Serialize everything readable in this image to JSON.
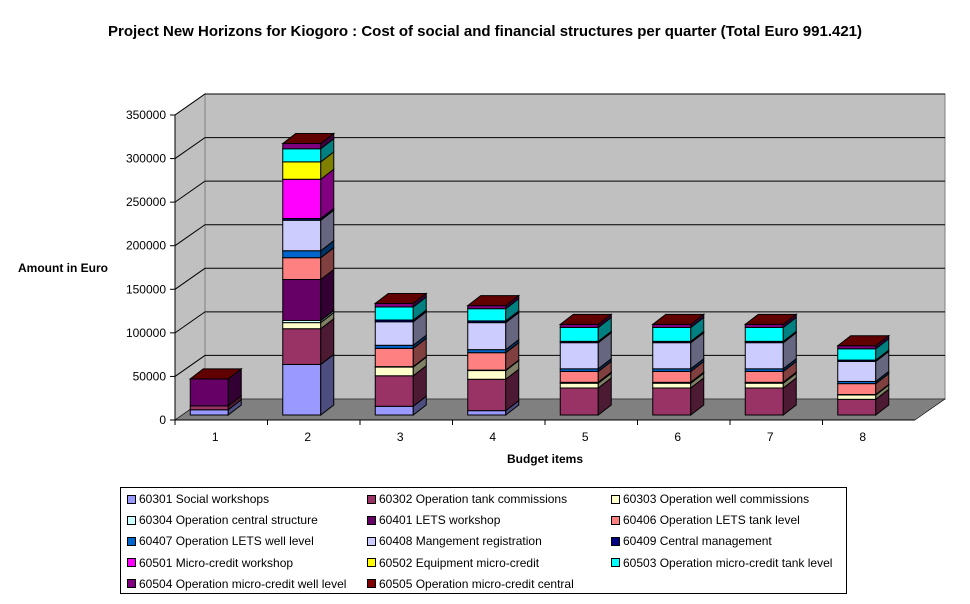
{
  "chart_data": {
    "type": "bar",
    "stacked": true,
    "three_d": true,
    "title": "Project New Horizons for Kiogoro : Cost of social and financial structures per quarter (Total Euro 991.421)",
    "xlabel": "Budget items",
    "ylabel": "Amount in Euro",
    "ylim": [
      0,
      350000
    ],
    "yticks": [
      "0",
      "50000",
      "100000",
      "150000",
      "200000",
      "250000",
      "300000",
      "350000"
    ],
    "grid": true,
    "legend_position": "bottom",
    "categories": [
      "1",
      "2",
      "3",
      "4",
      "5",
      "6",
      "7",
      "8"
    ],
    "series": [
      {
        "name": "60301 Social workshops",
        "color": "#9999FF",
        "values": [
          6000,
          58000,
          10000,
          5000,
          0,
          0,
          0,
          0
        ]
      },
      {
        "name": "60302 Operation tank commissions",
        "color": "#993366",
        "values": [
          4500,
          41000,
          35000,
          36000,
          31000,
          31000,
          31000,
          18000
        ]
      },
      {
        "name": "60303 Operation well commissions",
        "color": "#FFFFCC",
        "values": [
          0,
          7000,
          10000,
          10000,
          5500,
          5500,
          5500,
          5000
        ]
      },
      {
        "name": "60304 Operation central structure",
        "color": "#CCFFFF",
        "values": [
          0,
          2500,
          500,
          500,
          1000,
          1000,
          1000,
          500
        ]
      },
      {
        "name": "60401 LETS workshop",
        "color": "#660066",
        "values": [
          31000,
          47000,
          0,
          0,
          0,
          0,
          0,
          0
        ]
      },
      {
        "name": "60406 Operation LETS tank level",
        "color": "#FF8080",
        "values": [
          0,
          25000,
          21000,
          20000,
          12500,
          12500,
          12500,
          12500
        ]
      },
      {
        "name": "60407 Operation LETS well level",
        "color": "#0066CC",
        "values": [
          0,
          8000,
          3500,
          3500,
          3000,
          3000,
          3000,
          2500
        ]
      },
      {
        "name": "60408 Mangement registration",
        "color": "#CCCCFF",
        "values": [
          0,
          35000,
          27000,
          31000,
          30000,
          30000,
          30000,
          23000
        ]
      },
      {
        "name": "60409 Central management",
        "color": "#000080",
        "values": [
          0,
          2000,
          2000,
          2000,
          1500,
          1500,
          1500,
          1500
        ]
      },
      {
        "name": "60501 Micro-credit workshop",
        "color": "#FF00FF",
        "values": [
          0,
          45000,
          0,
          0,
          0,
          0,
          0,
          0
        ]
      },
      {
        "name": "60502 Equipment micro-credit",
        "color": "#FFFF00",
        "values": [
          0,
          20000,
          0,
          0,
          0,
          0,
          0,
          0
        ]
      },
      {
        "name": "60503 Operation micro-credit tank level",
        "color": "#00FFFF",
        "values": [
          0,
          15000,
          15000,
          14000,
          16000,
          16000,
          16000,
          13000
        ]
      },
      {
        "name": "60504 Operation micro-credit well level",
        "color": "#800080",
        "values": [
          0,
          6000,
          4000,
          3500,
          3500,
          3500,
          3500,
          3500
        ]
      },
      {
        "name": "60505 Operation micro-credit central",
        "color": "#800000",
        "values": [
          0,
          0,
          0,
          0,
          0,
          0,
          0,
          0
        ]
      }
    ]
  }
}
